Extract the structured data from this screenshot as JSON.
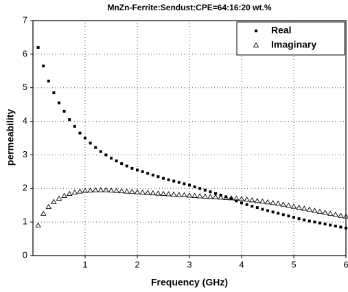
{
  "chart_data": {
    "type": "scatter",
    "title": "MnZn-Ferrite:Sendust:CPE=64:16:20 wt.%",
    "xlabel": "Frequency (GHz)",
    "ylabel": "permeability",
    "x": [
      0.1,
      0.2,
      0.3,
      0.4,
      0.5,
      0.6,
      0.7,
      0.8,
      0.9,
      1.0,
      1.1,
      1.2,
      1.3,
      1.4,
      1.5,
      1.6,
      1.7,
      1.8,
      1.9,
      2.0,
      2.1,
      2.2,
      2.3,
      2.4,
      2.5,
      2.6,
      2.7,
      2.8,
      2.9,
      3.0,
      3.1,
      3.2,
      3.3,
      3.4,
      3.5,
      3.6,
      3.7,
      3.8,
      3.9,
      4.0,
      4.1,
      4.2,
      4.3,
      4.4,
      4.5,
      4.6,
      4.7,
      4.8,
      4.9,
      5.0,
      5.1,
      5.2,
      5.3,
      5.4,
      5.5,
      5.6,
      5.7,
      5.8,
      5.9,
      6.0
    ],
    "series": [
      {
        "name": "Real",
        "color": "#000000",
        "marker": "square",
        "values": [
          6.2,
          5.65,
          5.2,
          4.85,
          4.55,
          4.3,
          4.05,
          3.85,
          3.65,
          3.5,
          3.35,
          3.22,
          3.1,
          3.0,
          2.9,
          2.82,
          2.74,
          2.67,
          2.6,
          2.55,
          2.5,
          2.45,
          2.4,
          2.35,
          2.3,
          2.26,
          2.22,
          2.18,
          2.14,
          2.1,
          2.05,
          2.0,
          1.95,
          1.9,
          1.85,
          1.8,
          1.75,
          1.7,
          1.63,
          1.57,
          1.52,
          1.47,
          1.43,
          1.38,
          1.34,
          1.3,
          1.26,
          1.22,
          1.18,
          1.14,
          1.1,
          1.06,
          1.03,
          1.0,
          0.97,
          0.94,
          0.91,
          0.88,
          0.85,
          0.82
        ]
      },
      {
        "name": "Imaginary",
        "color": "#000000",
        "marker": "triangle-open",
        "values": [
          0.9,
          1.25,
          1.45,
          1.6,
          1.7,
          1.78,
          1.84,
          1.88,
          1.91,
          1.93,
          1.94,
          1.95,
          1.95,
          1.95,
          1.94,
          1.93,
          1.92,
          1.91,
          1.9,
          1.89,
          1.88,
          1.87,
          1.86,
          1.85,
          1.84,
          1.83,
          1.82,
          1.81,
          1.8,
          1.79,
          1.78,
          1.77,
          1.76,
          1.75,
          1.74,
          1.73,
          1.72,
          1.71,
          1.7,
          1.69,
          1.67,
          1.65,
          1.63,
          1.61,
          1.59,
          1.57,
          1.55,
          1.52,
          1.49,
          1.46,
          1.43,
          1.4,
          1.37,
          1.34,
          1.31,
          1.28,
          1.25,
          1.22,
          1.19,
          1.16
        ]
      }
    ],
    "xlim": [
      0,
      6
    ],
    "xticks": [
      1,
      2,
      3,
      4,
      5,
      6
    ],
    "ylim": [
      0,
      7
    ],
    "yticks": [
      0,
      1,
      2,
      3,
      4,
      5,
      6,
      7
    ],
    "grid": true,
    "legend": "upper right"
  }
}
